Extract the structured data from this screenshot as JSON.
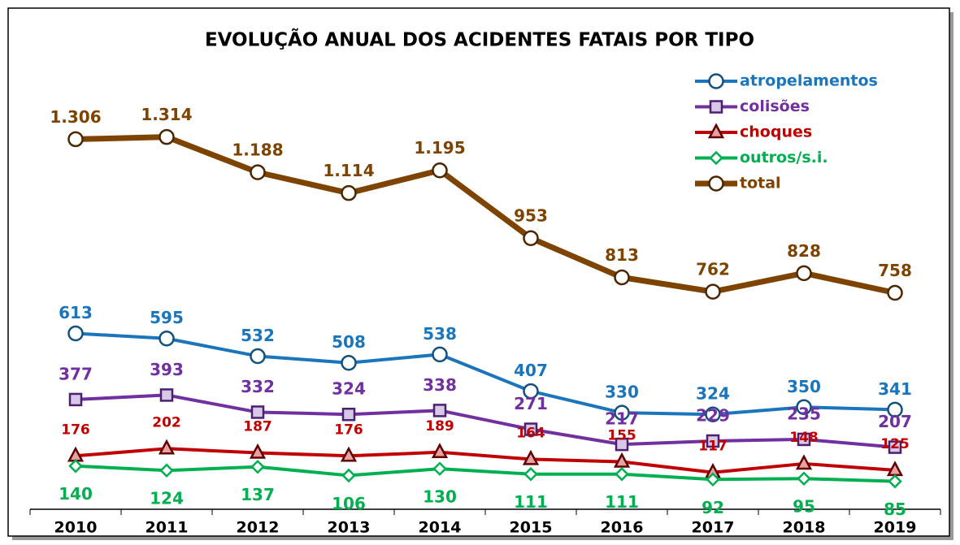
{
  "chart_data": {
    "type": "line",
    "title": "EVOLUÇÃO ANUAL DOS ACIDENTES FATAIS POR TIPO",
    "categories": [
      "2010",
      "2011",
      "2012",
      "2013",
      "2014",
      "2015",
      "2016",
      "2017",
      "2018",
      "2019"
    ],
    "series": [
      {
        "name": "atropelamentos",
        "color": "#1a75bc",
        "marker": "circle",
        "values": [
          613,
          595,
          532,
          508,
          538,
          407,
          330,
          324,
          350,
          341
        ]
      },
      {
        "name": "colisões",
        "color": "#7030a0",
        "marker": "square",
        "values": [
          377,
          393,
          332,
          324,
          338,
          271,
          217,
          229,
          235,
          207
        ]
      },
      {
        "name": "choques",
        "color": "#c00000",
        "marker": "triangle",
        "values": [
          176,
          202,
          187,
          176,
          189,
          164,
          155,
          117,
          148,
          125
        ]
      },
      {
        "name": "outros/s.i.",
        "color": "#00b050",
        "marker": "diamond",
        "values": [
          140,
          124,
          137,
          106,
          130,
          111,
          111,
          92,
          95,
          85
        ]
      },
      {
        "name": "total",
        "color": "#7f4300",
        "marker": "circle",
        "values": [
          1306,
          1314,
          1188,
          1114,
          1195,
          953,
          813,
          762,
          828,
          758
        ],
        "value_labels": [
          "1.306",
          "1.314",
          "1.188",
          "1.114",
          "1.195",
          "953",
          "813",
          "762",
          "828",
          "758"
        ]
      }
    ],
    "legend": "upper right"
  }
}
